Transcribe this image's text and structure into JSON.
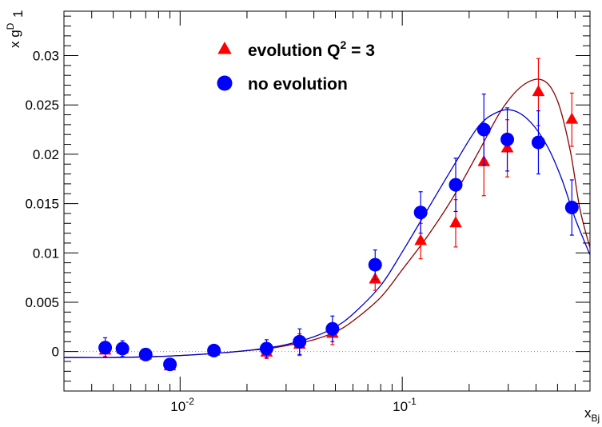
{
  "chart_data": {
    "type": "scatter",
    "xscale": "log",
    "xlim": [
      0.003,
      0.7
    ],
    "ylim": [
      -0.004,
      0.0345
    ],
    "xlabel": "x",
    "xlabel_sub": "Bj",
    "ylabel": "x g",
    "ylabel_sup": "D",
    "ylabel_sub": "1",
    "x_ticks": [
      {
        "value": 0.01,
        "base": "10",
        "exp": "-2"
      },
      {
        "value": 0.1,
        "base": "10",
        "exp": "-1"
      }
    ],
    "y_ticks": [
      {
        "value": 0,
        "label": "0"
      },
      {
        "value": 0.005,
        "label": "0.005"
      },
      {
        "value": 0.01,
        "label": "0.01"
      },
      {
        "value": 0.015,
        "label": "0.015"
      },
      {
        "value": 0.02,
        "label": "0.02"
      },
      {
        "value": 0.025,
        "label": "0.025"
      },
      {
        "value": 0.03,
        "label": "0.03"
      }
    ],
    "legend": [
      {
        "label_main": "evolution Q",
        "label_sup": "2",
        "label_tail": " = 3",
        "marker": "triangle",
        "color": "#ff0000"
      },
      {
        "label_main": "no evolution",
        "label_sup": "",
        "label_tail": "",
        "marker": "circle",
        "color": "#0000ff"
      }
    ],
    "series": [
      {
        "name": "evolution Q2 = 3",
        "marker": "triangle",
        "color": "#ff0000",
        "points": [
          {
            "x": 0.0046,
            "y": 0.0001,
            "err": 0.0006
          },
          {
            "x": 0.0055,
            "y": 0.0002,
            "err": 0.0005
          },
          {
            "x": 0.007,
            "y": -0.0004,
            "err": 0.0003
          },
          {
            "x": 0.009,
            "y": -0.0015,
            "err": 0.0004
          },
          {
            "x": 0.0142,
            "y": 0.0,
            "err": 0.0003
          },
          {
            "x": 0.0245,
            "y": -0.0001,
            "err": 0.0006
          },
          {
            "x": 0.0345,
            "y": 0.0007,
            "err": 0.0011
          },
          {
            "x": 0.0485,
            "y": 0.0018,
            "err": 0.0011
          },
          {
            "x": 0.0755,
            "y": 0.0073,
            "err": 0.0011
          },
          {
            "x": 0.121,
            "y": 0.0112,
            "err": 0.0018
          },
          {
            "x": 0.174,
            "y": 0.013,
            "err": 0.0024
          },
          {
            "x": 0.233,
            "y": 0.0192,
            "err": 0.0034
          },
          {
            "x": 0.297,
            "y": 0.0206,
            "err": 0.0029
          },
          {
            "x": 0.41,
            "y": 0.0263,
            "err": 0.0034
          },
          {
            "x": 0.58,
            "y": 0.0235,
            "err": 0.0027
          }
        ]
      },
      {
        "name": "no evolution",
        "marker": "circle",
        "color": "#0000ff",
        "points": [
          {
            "x": 0.0046,
            "y": 0.0004,
            "err": 0.001
          },
          {
            "x": 0.0055,
            "y": 0.0003,
            "err": 0.0008
          },
          {
            "x": 0.007,
            "y": -0.0003,
            "err": 0.0004
          },
          {
            "x": 0.009,
            "y": -0.0013,
            "err": 0.0005
          },
          {
            "x": 0.0142,
            "y": 0.0001,
            "err": 0.0005
          },
          {
            "x": 0.0245,
            "y": 0.0003,
            "err": 0.0009
          },
          {
            "x": 0.0345,
            "y": 0.001,
            "err": 0.0013
          },
          {
            "x": 0.0485,
            "y": 0.0023,
            "err": 0.0013
          },
          {
            "x": 0.0755,
            "y": 0.0088,
            "err": 0.0015
          },
          {
            "x": 0.121,
            "y": 0.0141,
            "err": 0.0021
          },
          {
            "x": 0.174,
            "y": 0.0169,
            "err": 0.0027
          },
          {
            "x": 0.233,
            "y": 0.0225,
            "err": 0.0036
          },
          {
            "x": 0.297,
            "y": 0.0215,
            "err": 0.0032
          },
          {
            "x": 0.41,
            "y": 0.0212,
            "err": 0.0032
          },
          {
            "x": 0.58,
            "y": 0.0146,
            "err": 0.0028
          }
        ]
      }
    ],
    "fit_curves": [
      {
        "color": "#8b0000",
        "points": [
          [
            0.003,
            -0.0006
          ],
          [
            0.005,
            -0.0006
          ],
          [
            0.008,
            -0.0005
          ],
          [
            0.012,
            -0.0003
          ],
          [
            0.016,
            -0.0001
          ],
          [
            0.02,
            0.0001
          ],
          [
            0.025,
            0.0003
          ],
          [
            0.03,
            0.0006
          ],
          [
            0.04,
            0.0012
          ],
          [
            0.05,
            0.002
          ],
          [
            0.06,
            0.0031
          ],
          [
            0.08,
            0.0055
          ],
          [
            0.1,
            0.0083
          ],
          [
            0.13,
            0.0117
          ],
          [
            0.17,
            0.0157
          ],
          [
            0.22,
            0.0202
          ],
          [
            0.28,
            0.0245
          ],
          [
            0.35,
            0.027
          ],
          [
            0.43,
            0.0275
          ],
          [
            0.5,
            0.0254
          ],
          [
            0.57,
            0.0204
          ],
          [
            0.63,
            0.0145
          ],
          [
            0.7,
            0.0105
          ]
        ]
      },
      {
        "color": "#0000cc",
        "points": [
          [
            0.003,
            -0.0006
          ],
          [
            0.005,
            -0.0006
          ],
          [
            0.008,
            -0.0005
          ],
          [
            0.012,
            -0.0003
          ],
          [
            0.016,
            -0.0001
          ],
          [
            0.02,
            0.0001
          ],
          [
            0.025,
            0.0004
          ],
          [
            0.03,
            0.0007
          ],
          [
            0.04,
            0.0015
          ],
          [
            0.05,
            0.0025
          ],
          [
            0.06,
            0.0038
          ],
          [
            0.08,
            0.0067
          ],
          [
            0.1,
            0.0101
          ],
          [
            0.13,
            0.0144
          ],
          [
            0.17,
            0.0188
          ],
          [
            0.22,
            0.0228
          ],
          [
            0.27,
            0.0243
          ],
          [
            0.32,
            0.0244
          ],
          [
            0.38,
            0.0232
          ],
          [
            0.45,
            0.0208
          ],
          [
            0.52,
            0.0176
          ],
          [
            0.6,
            0.0135
          ],
          [
            0.7,
            0.0098
          ]
        ]
      }
    ],
    "zero_line": true,
    "grid": false,
    "legend_position": "top-center"
  }
}
